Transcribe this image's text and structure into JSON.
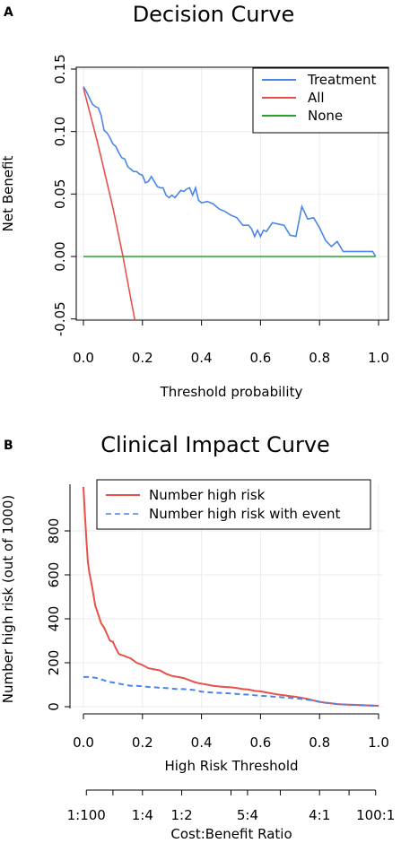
{
  "panel_a": {
    "letter": "A",
    "title": "Decision Curve",
    "xlabel": "Threshold probability",
    "ylabel": "Net Benefit",
    "xticks": [
      0.0,
      0.2,
      0.4,
      0.6,
      0.8,
      1.0
    ],
    "xtick_labels": [
      "0.0",
      "0.2",
      "0.4",
      "0.6",
      "0.8",
      "1.0"
    ],
    "yticks": [
      -0.05,
      0.0,
      0.05,
      0.1,
      0.15
    ],
    "ytick_labels": [
      "-0.05",
      "0.00",
      "0.05",
      "0.10",
      "0.15"
    ],
    "legend": [
      {
        "label": "Treatment",
        "color": "#4a86e8"
      },
      {
        "label": "All",
        "color": "#e8504a"
      },
      {
        "label": "None",
        "color": "#2ba02b"
      }
    ]
  },
  "panel_b": {
    "letter": "B",
    "title": "Clinical Impact Curve",
    "xlabel": "High Risk Threshold",
    "ylabel": "Number high risk (out of 1000)",
    "xticks": [
      0.0,
      0.2,
      0.4,
      0.6,
      0.8,
      1.0
    ],
    "xtick_labels": [
      "0.0",
      "0.2",
      "0.4",
      "0.6",
      "0.8",
      "1.0"
    ],
    "yticks": [
      0,
      200,
      400,
      600,
      800
    ],
    "ytick_labels": [
      "0",
      "200",
      "400",
      "600",
      "800"
    ],
    "cost_ticks": [
      0.0099,
      0.1,
      0.2,
      0.333,
      0.5,
      0.556,
      0.667,
      0.8,
      0.9,
      0.99
    ],
    "cost_labels": [
      {
        "text": "1:100",
        "at": 0.0099
      },
      {
        "text": "1:4",
        "at": 0.2
      },
      {
        "text": "1:2",
        "at": 0.333
      },
      {
        "text": "5:4",
        "at": 0.556
      },
      {
        "text": "4:1",
        "at": 0.8
      },
      {
        "text": "100:1",
        "at": 0.99
      }
    ],
    "cost_axis_label": "Cost:Benefit Ratio",
    "legend": [
      {
        "label": "Number high risk",
        "color": "#e8504a",
        "dash": "none"
      },
      {
        "label": "Number high risk with event",
        "color": "#4a86e8",
        "dash": "6,4"
      }
    ]
  },
  "chart_data": [
    {
      "type": "line",
      "title": "Decision Curve",
      "xlabel": "Threshold probability",
      "ylabel": "Net Benefit",
      "xlim": [
        -0.05,
        1.05
      ],
      "ylim": [
        -0.055,
        0.152
      ],
      "grid": true,
      "legend_position": "top-right",
      "series": [
        {
          "name": "Treatment",
          "color": "#4a86e8",
          "x": [
            0.0,
            0.01,
            0.02,
            0.03,
            0.04,
            0.05,
            0.06,
            0.07,
            0.08,
            0.09,
            0.1,
            0.11,
            0.12,
            0.13,
            0.14,
            0.15,
            0.16,
            0.17,
            0.18,
            0.19,
            0.2,
            0.21,
            0.22,
            0.23,
            0.24,
            0.25,
            0.26,
            0.27,
            0.28,
            0.29,
            0.3,
            0.31,
            0.32,
            0.33,
            0.34,
            0.35,
            0.36,
            0.37,
            0.38,
            0.39,
            0.4,
            0.42,
            0.44,
            0.46,
            0.48,
            0.5,
            0.52,
            0.54,
            0.56,
            0.57,
            0.58,
            0.59,
            0.6,
            0.61,
            0.62,
            0.64,
            0.66,
            0.68,
            0.7,
            0.72,
            0.74,
            0.76,
            0.78,
            0.8,
            0.82,
            0.84,
            0.86,
            0.88,
            0.9,
            0.92,
            0.94,
            0.96,
            0.98,
            0.99
          ],
          "y": [
            0.136,
            0.132,
            0.127,
            0.122,
            0.12,
            0.119,
            0.113,
            0.101,
            0.099,
            0.095,
            0.09,
            0.088,
            0.083,
            0.079,
            0.078,
            0.072,
            0.07,
            0.068,
            0.068,
            0.066,
            0.065,
            0.059,
            0.06,
            0.064,
            0.06,
            0.056,
            0.055,
            0.055,
            0.049,
            0.047,
            0.049,
            0.047,
            0.05,
            0.053,
            0.052,
            0.054,
            0.055,
            0.049,
            0.055,
            0.045,
            0.043,
            0.044,
            0.042,
            0.038,
            0.036,
            0.033,
            0.031,
            0.025,
            0.025,
            0.022,
            0.016,
            0.021,
            0.016,
            0.021,
            0.02,
            0.027,
            0.026,
            0.025,
            0.017,
            0.016,
            0.04,
            0.03,
            0.031,
            0.023,
            0.013,
            0.008,
            0.012,
            0.004,
            0.004,
            0.004,
            0.004,
            0.004,
            0.004,
            0.0
          ]
        },
        {
          "name": "All",
          "color": "#e8504a",
          "x": [
            0.0,
            0.05,
            0.1,
            0.134,
            0.16,
            0.18
          ],
          "y": [
            0.135,
            0.089,
            0.039,
            0.0,
            -0.033,
            -0.058
          ]
        },
        {
          "name": "None",
          "color": "#2ba02b",
          "x": [
            0.0,
            0.99
          ],
          "y": [
            0.0,
            0.0
          ]
        }
      ]
    },
    {
      "type": "line",
      "title": "Clinical Impact Curve",
      "xlabel": "High Risk Threshold",
      "ylabel": "Number high risk (out of 1000)",
      "xlim": [
        -0.05,
        1.05
      ],
      "ylim": [
        -15,
        1010
      ],
      "grid": true,
      "legend_position": "top-right",
      "series": [
        {
          "name": "Number high risk",
          "color": "#e8504a",
          "x": [
            0.0,
            0.005,
            0.01,
            0.015,
            0.02,
            0.03,
            0.04,
            0.05,
            0.06,
            0.07,
            0.08,
            0.09,
            0.1,
            0.11,
            0.12,
            0.13,
            0.14,
            0.15,
            0.16,
            0.18,
            0.2,
            0.22,
            0.24,
            0.26,
            0.28,
            0.3,
            0.32,
            0.34,
            0.36,
            0.38,
            0.4,
            0.42,
            0.44,
            0.46,
            0.48,
            0.5,
            0.52,
            0.54,
            0.56,
            0.58,
            0.6,
            0.62,
            0.64,
            0.66,
            0.68,
            0.7,
            0.72,
            0.74,
            0.76,
            0.78,
            0.8,
            0.82,
            0.84,
            0.86,
            0.88,
            0.9,
            0.92,
            0.94,
            0.96,
            0.98,
            1.0
          ],
          "y": [
            1000,
            880,
            760,
            660,
            610,
            540,
            460,
            420,
            380,
            360,
            330,
            300,
            295,
            265,
            240,
            235,
            230,
            225,
            220,
            200,
            190,
            175,
            170,
            165,
            150,
            140,
            135,
            130,
            120,
            110,
            105,
            100,
            95,
            92,
            90,
            88,
            85,
            80,
            78,
            72,
            70,
            65,
            60,
            55,
            52,
            48,
            45,
            40,
            35,
            28,
            22,
            18,
            15,
            12,
            10,
            9,
            8,
            7,
            6,
            5,
            4
          ]
        },
        {
          "name": "Number high risk with event",
          "color": "#4a86e8",
          "x": [
            0.0,
            0.02,
            0.04,
            0.06,
            0.08,
            0.1,
            0.12,
            0.14,
            0.16,
            0.18,
            0.2,
            0.22,
            0.24,
            0.26,
            0.28,
            0.3,
            0.32,
            0.34,
            0.36,
            0.38,
            0.4,
            0.42,
            0.44,
            0.46,
            0.48,
            0.5,
            0.52,
            0.54,
            0.56,
            0.58,
            0.6,
            0.62,
            0.64,
            0.66,
            0.68,
            0.7,
            0.72,
            0.74,
            0.76,
            0.78,
            0.8,
            0.82,
            0.84,
            0.86,
            0.88,
            0.9,
            0.92,
            0.94,
            0.96,
            0.98,
            1.0
          ],
          "y": [
            135,
            135,
            132,
            125,
            115,
            110,
            105,
            100,
            95,
            95,
            93,
            90,
            88,
            86,
            85,
            82,
            80,
            80,
            78,
            75,
            68,
            66,
            64,
            63,
            62,
            60,
            58,
            56,
            55,
            52,
            50,
            48,
            46,
            44,
            42,
            40,
            38,
            35,
            32,
            28,
            22,
            18,
            15,
            12,
            10,
            9,
            8,
            7,
            6,
            5,
            4
          ]
        }
      ]
    }
  ]
}
